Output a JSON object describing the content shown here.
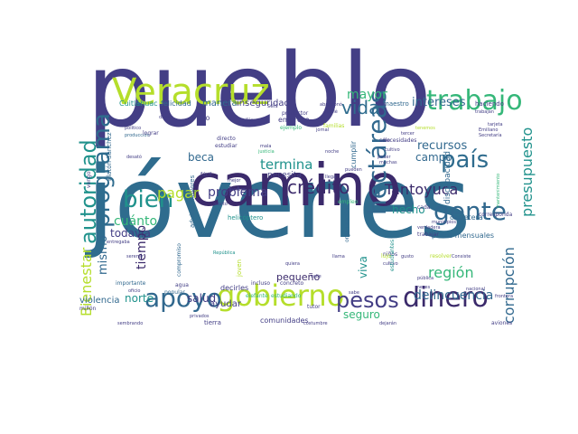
{
  "palette": {
    "dark_purple": "#3b2a6b",
    "indigo": "#433e85",
    "blue": "#31688e",
    "slate": "#2f6c8e",
    "teal": "#20928c",
    "green": "#35b779",
    "lime": "#b5de2b",
    "yellow": "#dde318"
  },
  "words": [
    {
      "text": "pueblo",
      "color": "#433e85",
      "rot": 0
    },
    {
      "text": "jóvenes",
      "color": "#2f6c8e",
      "rot": 0
    },
    {
      "text": "camino",
      "color": "#3b2a6b",
      "rot": 0
    },
    {
      "text": "Veracruz",
      "color": "#b5de2b",
      "rot": 0
    },
    {
      "text": "trabajo",
      "color": "#35b779",
      "rot": 0
    },
    {
      "text": "hectáreas",
      "color": "#31688e",
      "rot": -90
    },
    {
      "text": "programa",
      "color": "#2f6c8e",
      "rot": -90
    },
    {
      "text": "autoridad",
      "color": "#20928c",
      "rot": -90
    },
    {
      "text": "gobierno",
      "color": "#b5de2b",
      "rot": 0
    },
    {
      "text": "apoyo",
      "color": "#31688e",
      "rot": 0
    },
    {
      "text": "dinero",
      "color": "#3b2a6b",
      "rot": 0
    },
    {
      "text": "gente",
      "color": "#31688e",
      "rot": 0
    },
    {
      "text": "país",
      "color": "#2f6c8e",
      "rot": 0
    },
    {
      "text": "bien",
      "color": "#20928c",
      "rot": 0
    },
    {
      "text": "pesos",
      "color": "#433e85",
      "rot": 0
    },
    {
      "text": "vida",
      "color": "#2f6c8e",
      "rot": 0
    },
    {
      "text": "pagar",
      "color": "#b5de2b",
      "rot": 0
    },
    {
      "text": "crédito",
      "color": "#3b2a6b",
      "rot": 0
    },
    {
      "text": "Tantoyuca",
      "color": "#3b2a6b",
      "rot": 0
    },
    {
      "text": "presupuesto",
      "color": "#20928c",
      "rot": -90
    },
    {
      "text": "corrupción",
      "color": "#31688e",
      "rot": -90
    },
    {
      "text": "región",
      "color": "#35b779",
      "rot": 0
    },
    {
      "text": "delincuencia",
      "color": "#31688e",
      "rot": 0
    },
    {
      "text": "termina",
      "color": "#20928c",
      "rot": 0
    },
    {
      "text": "problema",
      "color": "#433e85",
      "rot": 0
    },
    {
      "text": "cuánto",
      "color": "#35b779",
      "rot": 0
    },
    {
      "text": "Bienestar",
      "color": "#b5de2b",
      "rot": -90
    },
    {
      "text": "mayor",
      "color": "#35b779",
      "rot": 0
    },
    {
      "text": "intereses",
      "color": "#31688e",
      "rot": 0
    },
    {
      "text": "recursos",
      "color": "#31688e",
      "rot": 0
    },
    {
      "text": "campo",
      "color": "#31688e",
      "rot": 0
    },
    {
      "text": "mismo",
      "color": "#31688e",
      "rot": -90
    },
    {
      "text": "todavía",
      "color": "#433e85",
      "rot": 0
    },
    {
      "text": "tiempo",
      "color": "#3b2a6b",
      "rot": -90
    },
    {
      "text": "norte",
      "color": "#20928c",
      "rot": 0
    },
    {
      "text": "salud",
      "color": "#433e85",
      "rot": 0
    },
    {
      "text": "beca",
      "color": "#31688e",
      "rot": 0
    },
    {
      "text": "hecho",
      "color": "#20928c",
      "rot": 0
    },
    {
      "text": "pequeño",
      "color": "#3b2a6b",
      "rot": 0
    },
    {
      "text": "seguro",
      "color": "#35b779",
      "rot": 0
    },
    {
      "text": "viva",
      "color": "#20928c",
      "rot": -90
    },
    {
      "text": "maestro",
      "color": "#31688e",
      "rot": 0
    },
    {
      "text": "necesita",
      "color": "#433e85",
      "rot": 0
    },
    {
      "text": "manera",
      "color": "#31688e",
      "rot": 0
    },
    {
      "text": "inseguridad",
      "color": "#433e85",
      "rot": 0
    },
    {
      "text": "violencia",
      "color": "#31688e",
      "rot": 0
    },
    {
      "text": "comunidades",
      "color": "#433e85",
      "rot": 0
    },
    {
      "text": "pesos mensuales",
      "color": "#31688e",
      "rot": 0
    },
    {
      "text": "carretera",
      "color": "#31688e",
      "rot": 0
    },
    {
      "text": "discapacidad",
      "color": "#31688e",
      "rot": -90
    },
    {
      "text": "tierra",
      "color": "#433e85",
      "rot": 0
    },
    {
      "text": "ayudar",
      "color": "#433e85",
      "rot": 0
    },
    {
      "text": "decirles",
      "color": "#433e85",
      "rot": 0
    },
    {
      "text": "felicidad",
      "color": "#31688e",
      "rot": 0
    },
    {
      "text": "Cuitláhuac",
      "color": "#20928c",
      "rot": 0
    },
    {
      "text": "dijo",
      "color": "#433e85",
      "rot": 0
    },
    {
      "text": "adultos mayores",
      "color": "#31688e",
      "rot": -90
    },
    {
      "text": "Platón Sánchez",
      "color": "#31688e",
      "rot": -90
    },
    {
      "text": "producción",
      "color": "#31688e",
      "rot": 0
    },
    {
      "text": "empresa",
      "color": "#433e85",
      "rot": 0
    },
    {
      "text": "productor",
      "color": "#433e85",
      "rot": 0
    },
    {
      "text": "jornal",
      "color": "#433e85",
      "rot": 0
    },
    {
      "text": "cumplir",
      "color": "#31688e",
      "rot": -90
    },
    {
      "text": "estudiar",
      "color": "#433e85",
      "rot": 0
    },
    {
      "text": "directo",
      "color": "#433e85",
      "rot": 0
    },
    {
      "text": "ejemplo",
      "color": "#35b779",
      "rot": 0
    },
    {
      "text": "familias",
      "color": "#b5de2b",
      "rot": 0
    },
    {
      "text": "sólo",
      "color": "#433e85",
      "rot": 0
    },
    {
      "text": "cultivo",
      "color": "#433e85",
      "rot": 0
    },
    {
      "text": "necesidades",
      "color": "#433e85",
      "rot": 0
    },
    {
      "text": "muchas",
      "color": "#433e85",
      "rot": 0
    },
    {
      "text": "pueden",
      "color": "#433e85",
      "rot": 0
    },
    {
      "text": "llega",
      "color": "#433e85",
      "rot": 0
    },
    {
      "text": "noche",
      "color": "#433e85",
      "rot": 0
    },
    {
      "text": "justicia",
      "color": "#35b779",
      "rot": 0
    },
    {
      "text": "mala",
      "color": "#433e85",
      "rot": 0
    },
    {
      "text": "fácil",
      "color": "#433e85",
      "rot": 0
    },
    {
      "text": "pública",
      "color": "#433e85",
      "rot": 0
    },
    {
      "text": "mejor",
      "color": "#433e85",
      "rot": 0
    },
    {
      "text": "primero",
      "color": "#433e85",
      "rot": 0
    },
    {
      "text": "adulto",
      "color": "#433e85",
      "rot": 0
    },
    {
      "text": "helicóptero",
      "color": "#20928c",
      "rot": 0
    },
    {
      "text": "compromiso",
      "color": "#31688e",
      "rot": -90
    },
    {
      "text": "agua",
      "color": "#433e85",
      "rot": 0
    },
    {
      "text": "popular",
      "color": "#31688e",
      "rot": 0
    },
    {
      "text": "importante",
      "color": "#31688e",
      "rot": 0
    },
    {
      "text": "oficio",
      "color": "#433e85",
      "rot": 0
    },
    {
      "text": "serenar",
      "color": "#433e85",
      "rot": 0
    },
    {
      "text": "elefante",
      "color": "#35b779",
      "rot": 0
    },
    {
      "text": "estudiando",
      "color": "#35b779",
      "rot": 0
    },
    {
      "text": "concreto",
      "color": "#433e85",
      "rot": 0
    },
    {
      "text": "tutor",
      "color": "#433e85",
      "rot": 0
    },
    {
      "text": "quiera",
      "color": "#433e85",
      "rot": 0
    },
    {
      "text": "calle",
      "color": "#433e85",
      "rot": 0
    },
    {
      "text": "incluso",
      "color": "#433e85",
      "rot": 0
    },
    {
      "text": "joven",
      "color": "#b5de2b",
      "rot": -90
    },
    {
      "text": "República",
      "color": "#20928c",
      "rot": 0
    },
    {
      "text": "empleo",
      "color": "#35b779",
      "rot": 0
    },
    {
      "text": "organización",
      "color": "#31688e",
      "rot": -90
    },
    {
      "text": "trabajar",
      "color": "#433e85",
      "rot": 0
    },
    {
      "text": "verdadera",
      "color": "#433e85",
      "rot": 0
    },
    {
      "text": "corresponda",
      "color": "#433e85",
      "rot": 0
    },
    {
      "text": "Secretaría",
      "color": "#433e85",
      "rot": 0
    },
    {
      "text": "Emiliano",
      "color": "#433e85",
      "rot": 0
    },
    {
      "text": "tarjeta",
      "color": "#433e85",
      "rot": 0
    },
    {
      "text": "municipios",
      "color": "#433e85",
      "rot": 0
    },
    {
      "text": "resolver",
      "color": "#b5de2b",
      "rot": 0
    },
    {
      "text": "nacional",
      "color": "#433e85",
      "rot": 0
    },
    {
      "text": "meses",
      "color": "#433e85",
      "rot": 0
    },
    {
      "text": "niños",
      "color": "#433e85",
      "rot": 0
    },
    {
      "text": "cultivo",
      "color": "#433e85",
      "rot": 0
    },
    {
      "text": "estudiantes",
      "color": "#20928c",
      "rot": -90
    },
    {
      "text": "cada",
      "color": "#433e85",
      "rot": 0
    },
    {
      "text": "haciendo",
      "color": "#433e85",
      "rot": 0
    },
    {
      "text": "trabajan",
      "color": "#433e85",
      "rot": 0
    },
    {
      "text": "mantenimiento",
      "color": "#35b779",
      "rot": -90
    },
    {
      "text": "aviones",
      "color": "#433e85",
      "rot": 0
    },
    {
      "text": "millón",
      "color": "#433e85",
      "rot": 0
    },
    {
      "text": "sembrando",
      "color": "#433e85",
      "rot": 0
    },
    {
      "text": "costumbre",
      "color": "#433e85",
      "rot": 0
    },
    {
      "text": "tenemos",
      "color": "#b5de2b",
      "rot": 0
    },
    {
      "text": "abandonó",
      "color": "#433e85",
      "rot": 0
    },
    {
      "text": "hablé",
      "color": "#433e85",
      "rot": 0
    },
    {
      "text": "seis",
      "color": "#433e85",
      "rot": 0
    },
    {
      "text": "dijo",
      "color": "#433e85",
      "rot": 0
    },
    {
      "text": "lograr",
      "color": "#433e85",
      "rot": 0
    },
    {
      "text": "poder",
      "color": "#433e85",
      "rot": 0
    },
    {
      "text": "gusto",
      "color": "#433e85",
      "rot": 0
    },
    {
      "text": "lujo",
      "color": "#b5de2b",
      "rot": 0
    },
    {
      "text": "llama",
      "color": "#433e85",
      "rot": 0
    },
    {
      "text": "sabe",
      "color": "#433e85",
      "rot": 0
    },
    {
      "text": "frontera",
      "color": "#433e85",
      "rot": 0
    },
    {
      "text": "Consiste",
      "color": "#433e85",
      "rot": 0
    },
    {
      "text": "vengo",
      "color": "#433e85",
      "rot": -90
    },
    {
      "text": "desató",
      "color": "#433e85",
      "rot": 0
    },
    {
      "text": "político",
      "color": "#433e85",
      "rot": 0
    },
    {
      "text": "dame",
      "color": "#433e85",
      "rot": 0
    },
    {
      "text": "entregaba",
      "color": "#433e85",
      "rot": 0
    },
    {
      "text": "dejarán",
      "color": "#433e85",
      "rot": 0
    },
    {
      "text": "privados",
      "color": "#433e85",
      "rot": 0
    },
    {
      "text": "tercer",
      "color": "#433e85",
      "rot": 0
    }
  ]
}
